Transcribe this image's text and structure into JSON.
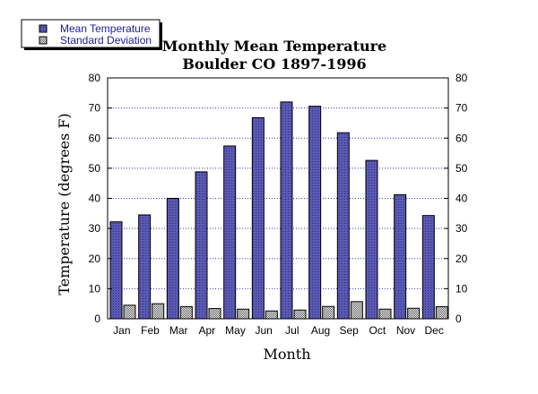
{
  "chart_data": {
    "type": "bar",
    "title": "Monthly Mean Temperature",
    "subtitle": "Boulder CO 1897-1996",
    "xlabel": "Month",
    "ylabel": "Temperature  (degrees F)",
    "ylim": [
      0,
      80
    ],
    "yticks": [
      0,
      10,
      20,
      30,
      40,
      50,
      60,
      70,
      80
    ],
    "ytick_labels": [
      "0",
      "10",
      "20",
      "30",
      "40",
      "50",
      "60",
      "70",
      "80"
    ],
    "grid": true,
    "legend_position": "top-left",
    "categories": [
      "Jan",
      "Feb",
      "Mar",
      "Apr",
      "May",
      "Jun",
      "Jul",
      "Aug",
      "Sep",
      "Oct",
      "Nov",
      "Dec"
    ],
    "series": [
      {
        "name": "Mean Temperature",
        "color": "#5a5ab4",
        "values": [
          32.2,
          34.5,
          40,
          48.8,
          57.4,
          66.8,
          72,
          70.6,
          61.8,
          52.6,
          41.2,
          34.3
        ]
      },
      {
        "name": "Standard Deviation",
        "color": "#d8d8d8",
        "values": [
          4.5,
          5,
          4,
          3.4,
          3.2,
          2.6,
          2.9,
          4.1,
          5.7,
          3.2,
          3.5,
          4
        ]
      }
    ]
  }
}
